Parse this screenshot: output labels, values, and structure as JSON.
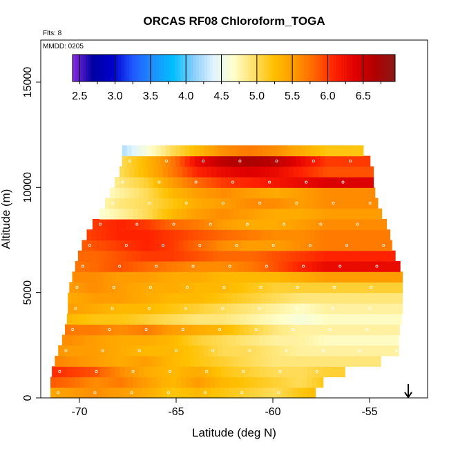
{
  "chart_data": {
    "type": "heatmap",
    "title": "ORCAS RF08 Chloroform_TOGA",
    "subtitle_flights": "Flts: 8",
    "date_label": "MMDD: 0205",
    "xlabel": "Latitude (deg N)",
    "ylabel": "Altitude (m)",
    "xlim": [
      -72,
      -52
    ],
    "ylim": [
      0,
      17000
    ],
    "x_ticks": [
      -70,
      -65,
      -60,
      -55
    ],
    "x_tick_labels": [
      "-70",
      "-65",
      "-60",
      "-55"
    ],
    "y_ticks": [
      0,
      5000,
      10000,
      15000
    ],
    "y_tick_labels": [
      "0",
      "5000",
      "10000",
      "15000"
    ],
    "colorbar": {
      "min": 2.4,
      "max": 6.95,
      "ticks": [
        2.5,
        3.0,
        3.5,
        4.0,
        4.5,
        5.0,
        5.5,
        6.0,
        6.5
      ],
      "tick_labels": [
        "2.5",
        "3.0",
        "3.5",
        "4.0",
        "4.5",
        "5.0",
        "5.5",
        "6.0",
        "6.5"
      ],
      "colors": [
        "#8a2be2",
        "#0000a0",
        "#0000cd",
        "#1e5aff",
        "#1e90ff",
        "#00bfff",
        "#87cefa",
        "#e0f4ff",
        "#ffffcc",
        "#ffe066",
        "#ffc000",
        "#ff9900",
        "#ff6600",
        "#ff2200",
        "#e00000",
        "#b00000",
        "#8b1a1a"
      ]
    },
    "arrow_marker": {
      "x": -53,
      "label": "down-arrow"
    },
    "profile_bounds": [
      {
        "alt": 0,
        "lat_min": -71.5,
        "lat_max": -58.0
      },
      {
        "alt": 1000,
        "lat_min": -71.5,
        "lat_max": -57.2
      },
      {
        "alt": 2000,
        "lat_min": -71.2,
        "lat_max": -53.5
      },
      {
        "alt": 3000,
        "lat_min": -70.8,
        "lat_max": -53.5
      },
      {
        "alt": 4000,
        "lat_min": -70.6,
        "lat_max": -53.3
      },
      {
        "alt": 5000,
        "lat_min": -70.6,
        "lat_max": -53.3
      },
      {
        "alt": 6000,
        "lat_min": -70.3,
        "lat_max": -53.3
      },
      {
        "alt": 7000,
        "lat_min": -70.0,
        "lat_max": -53.8
      },
      {
        "alt": 8000,
        "lat_min": -69.5,
        "lat_max": -54.0
      },
      {
        "alt": 9000,
        "lat_min": -68.8,
        "lat_max": -54.5
      },
      {
        "alt": 10000,
        "lat_min": -68.3,
        "lat_max": -54.8
      },
      {
        "alt": 11000,
        "lat_min": -67.8,
        "lat_max": -54.8
      },
      {
        "alt": 12000,
        "lat_min": -67.8,
        "lat_max": -55.5
      }
    ],
    "layers": [
      {
        "alt": 250,
        "values": [
          5.4,
          5.5,
          5.6,
          5.5,
          5.4,
          5.2,
          5.3,
          5.2,
          5.1,
          5.0,
          5.2,
          5.3
        ]
      },
      {
        "alt": 750,
        "values": [
          5.9,
          5.8,
          5.6,
          5.7,
          5.5,
          5.3,
          5.5,
          5.3,
          5.2,
          5.1,
          5.0,
          5.2
        ]
      },
      {
        "alt": 1250,
        "values": [
          6.1,
          6.0,
          5.9,
          5.6,
          5.4,
          5.3,
          5.4,
          5.2,
          5.1,
          5.0,
          5.0,
          5.1
        ]
      },
      {
        "alt": 1750,
        "values": [
          5.7,
          5.6,
          5.5,
          5.4,
          5.5,
          5.3,
          5.2,
          5.1,
          5.0,
          4.9,
          4.9,
          4.9
        ]
      },
      {
        "alt": 2250,
        "values": [
          5.6,
          5.5,
          5.5,
          5.4,
          5.3,
          5.3,
          5.2,
          5.0,
          5.0,
          4.9,
          4.8,
          4.8
        ]
      },
      {
        "alt": 2750,
        "values": [
          5.5,
          5.6,
          5.5,
          5.4,
          5.4,
          5.3,
          5.1,
          5.0,
          4.9,
          4.8,
          4.8,
          4.7
        ]
      },
      {
        "alt": 3250,
        "values": [
          5.8,
          5.7,
          5.7,
          5.6,
          5.7,
          5.5,
          5.4,
          5.3,
          5.1,
          4.9,
          4.8,
          4.8
        ]
      },
      {
        "alt": 3750,
        "values": [
          5.3,
          5.3,
          5.2,
          5.2,
          5.1,
          5.0,
          4.9,
          4.9,
          4.8,
          4.7,
          4.6,
          4.7
        ]
      },
      {
        "alt": 4250,
        "values": [
          5.4,
          5.5,
          5.4,
          5.3,
          5.3,
          5.2,
          5.1,
          5.0,
          4.9,
          4.8,
          4.7,
          4.8
        ]
      },
      {
        "alt": 4750,
        "values": [
          5.4,
          5.4,
          5.5,
          5.5,
          5.4,
          5.3,
          5.3,
          5.2,
          5.1,
          5.0,
          4.9,
          4.9
        ]
      },
      {
        "alt": 5250,
        "values": [
          5.5,
          5.5,
          5.6,
          5.5,
          5.4,
          5.4,
          5.3,
          5.3,
          5.2,
          5.1,
          5.1,
          5.1
        ]
      },
      {
        "alt": 5750,
        "values": [
          5.6,
          5.6,
          5.6,
          5.5,
          5.5,
          5.4,
          5.4,
          5.3,
          5.3,
          5.3,
          5.4,
          5.5
        ]
      },
      {
        "alt": 6250,
        "values": [
          5.7,
          5.7,
          5.8,
          5.9,
          5.8,
          5.7,
          5.6,
          5.6,
          5.7,
          5.9,
          6.1,
          6.3
        ]
      },
      {
        "alt": 6750,
        "values": [
          5.9,
          5.8,
          5.8,
          5.9,
          6.0,
          6.0,
          5.9,
          5.8,
          5.8,
          5.9,
          6.0,
          6.1
        ]
      },
      {
        "alt": 7250,
        "values": [
          5.7,
          5.8,
          5.9,
          6.0,
          6.1,
          6.0,
          5.8,
          5.6,
          5.5,
          5.5,
          5.6,
          5.7
        ]
      },
      {
        "alt": 7750,
        "values": [
          5.8,
          5.9,
          6.0,
          6.1,
          6.1,
          6.0,
          5.9,
          5.8,
          5.7,
          5.6,
          5.6,
          5.7
        ]
      },
      {
        "alt": 8250,
        "values": [
          5.6,
          5.7,
          6.0,
          6.1,
          6.0,
          5.8,
          5.7,
          5.5,
          5.4,
          5.4,
          5.5,
          5.6
        ]
      },
      {
        "alt": 8750,
        "values": [
          4.3,
          4.4,
          4.6,
          4.8,
          5.0,
          5.3,
          5.5,
          5.6,
          5.5,
          5.4,
          5.4,
          5.5
        ]
      },
      {
        "alt": 9250,
        "values": [
          4.4,
          4.5,
          4.7,
          4.9,
          5.0,
          5.2,
          5.4,
          5.5,
          5.6,
          5.6,
          5.5,
          5.6
        ]
      },
      {
        "alt": 9750,
        "values": [
          4.3,
          4.4,
          4.6,
          4.8,
          5.0,
          5.3,
          5.5,
          5.6,
          5.5,
          5.4,
          5.5,
          5.6
        ]
      },
      {
        "alt": 10250,
        "values": [
          4.2,
          4.3,
          4.6,
          4.9,
          5.1,
          5.5,
          5.8,
          6.0,
          6.1,
          6.2,
          6.3,
          6.4
        ]
      },
      {
        "alt": 10750,
        "values": [
          4.0,
          4.3,
          4.7,
          5.0,
          5.3,
          5.7,
          6.1,
          6.3,
          6.4,
          6.3,
          6.1,
          5.9
        ]
      },
      {
        "alt": 11250,
        "values": [
          3.9,
          4.2,
          4.6,
          5.0,
          5.3,
          5.7,
          6.3,
          6.6,
          6.7,
          6.6,
          6.3,
          6.0
        ]
      },
      {
        "alt": 11750,
        "values": [
          3.0,
          3.3,
          3.8,
          4.2,
          4.6,
          5.0,
          5.3,
          5.6,
          5.7,
          5.6,
          5.4,
          5.2
        ]
      }
    ]
  }
}
